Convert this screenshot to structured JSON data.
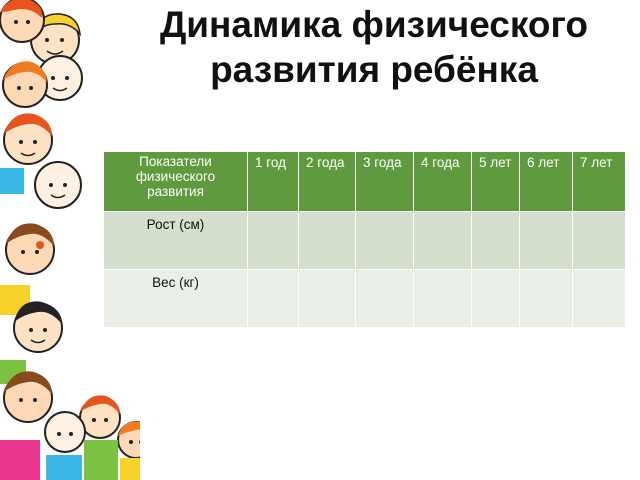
{
  "title": {
    "line1": "Динамика физического",
    "line2": "развития ребёнка"
  },
  "table": {
    "headers": [
      "Показатели физического развития",
      "1 год",
      "2 года",
      "3 года",
      "4 года",
      "5 лет",
      "6 лет",
      "7 лет"
    ],
    "rows": [
      {
        "label": "Рост (см)",
        "values": [
          "",
          "",
          "",
          "",
          "",
          "",
          ""
        ]
      },
      {
        "label": "Вес (кг)",
        "values": [
          "",
          "",
          "",
          "",
          "",
          "",
          ""
        ]
      }
    ]
  },
  "colors": {
    "header_bg": "#5f9a3e",
    "row1_bg": "#d4e0cd",
    "row2_bg": "#e9efe6"
  },
  "decoration": {
    "left_border": "children-cartoon-border"
  }
}
